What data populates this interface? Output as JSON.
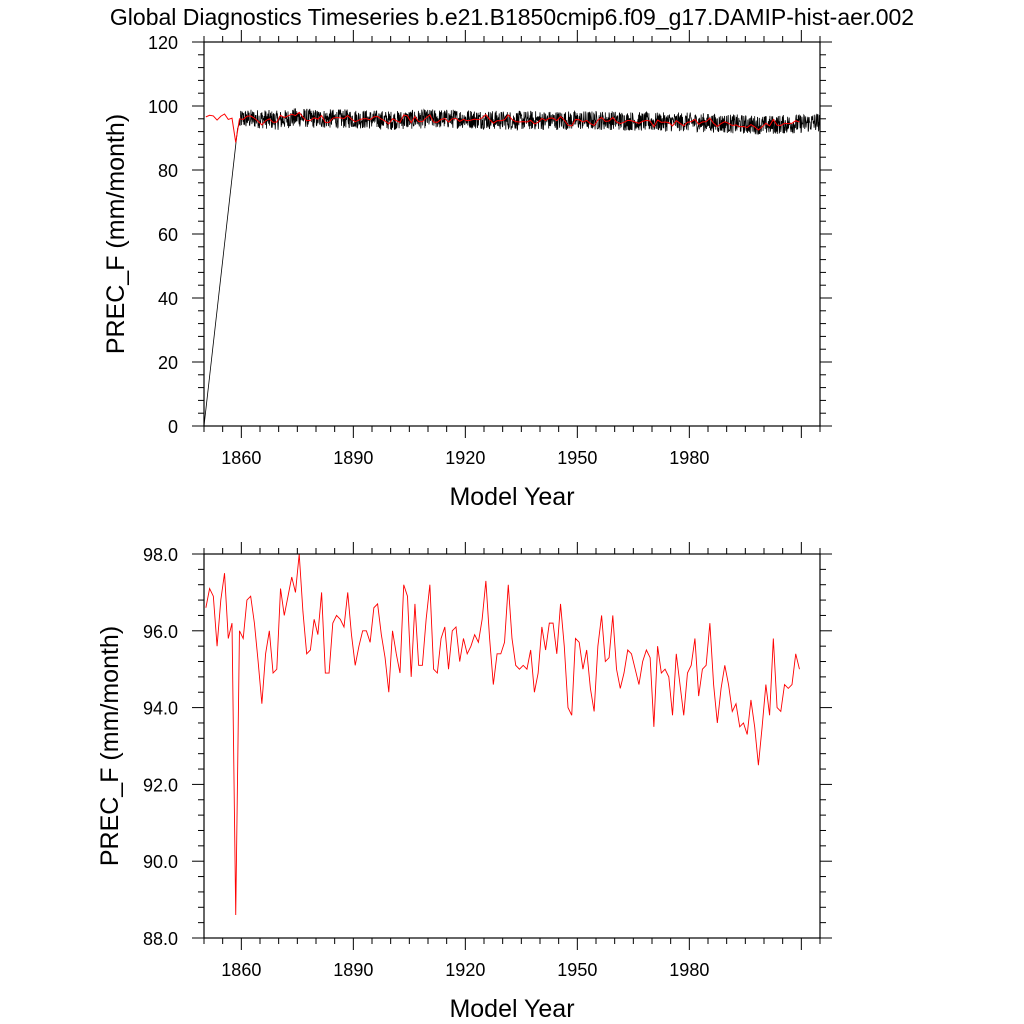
{
  "title": "Global Diagnostics Timeseries b.e21.B1850cmip6.f09_g17.DAMIP-hist-aer.002",
  "colors": {
    "monthly": "#000000",
    "annual": "#ff0000"
  },
  "chart_data": [
    {
      "type": "line",
      "xlabel": "Model Year",
      "ylabel": "PREC_F (mm/month)",
      "xlim": [
        1850,
        2015
      ],
      "ylim": [
        0,
        120
      ],
      "xticks": [
        1860,
        1890,
        1920,
        1950,
        1980
      ],
      "xtick_labels": [
        "1860",
        "1890",
        "1920",
        "1950",
        "1980"
      ],
      "yticks": [
        0,
        20,
        40,
        60,
        80,
        100,
        120
      ],
      "ytick_labels": [
        "0",
        "20",
        "40",
        "60",
        "80",
        "100",
        "120"
      ],
      "grid": false,
      "series": [
        {
          "style": "monthly",
          "color": "#000000",
          "description_note": "",
          "x_start": 1850,
          "x_end": 2015,
          "values_monthly_envelope": [
            [
              1850,
              0
            ],
            [
              1859,
              93
            ],
            [
              1860,
              96
            ],
            [
              1865,
              96
            ],
            [
              1870,
              95.5
            ],
            [
              1875,
              96.5
            ],
            [
              1880,
              96
            ],
            [
              1890,
              96
            ],
            [
              1900,
              95.5
            ],
            [
              1910,
              96
            ],
            [
              1920,
              96
            ],
            [
              1930,
              95.5
            ],
            [
              1940,
              95.5
            ],
            [
              1950,
              95.5
            ],
            [
              1960,
              95.5
            ],
            [
              1970,
              95
            ],
            [
              1980,
              95
            ],
            [
              1990,
              94.5
            ],
            [
              2000,
              94
            ],
            [
              2010,
              94.5
            ],
            [
              2015,
              95
            ]
          ],
          "monthly_spread": 3
        },
        {
          "style": "annual",
          "color": "#ff0000",
          "ref": "annual_mean"
        }
      ]
    },
    {
      "type": "line",
      "xlabel": "Model Year",
      "ylabel": "PREC_F (mm/month)",
      "xlim": [
        1850,
        2015
      ],
      "ylim": [
        88,
        98
      ],
      "xticks": [
        1860,
        1890,
        1920,
        1950,
        1980
      ],
      "xtick_labels": [
        "1860",
        "1890",
        "1920",
        "1950",
        "1980"
      ],
      "yticks": [
        88,
        90,
        92,
        94,
        96,
        98
      ],
      "ytick_labels": [
        "88.0",
        "90.0",
        "92.0",
        "94.0",
        "96.0",
        "98.0"
      ],
      "grid": false,
      "series": [
        {
          "style": "annual",
          "color": "#ff0000",
          "ref": "annual_mean"
        }
      ]
    }
  ],
  "annual_mean": {
    "x_start": 1850,
    "x_step": 1,
    "values": [
      96.6,
      97.1,
      96.9,
      95.6,
      96.8,
      97.5,
      95.8,
      96.2,
      88.6,
      96.0,
      95.8,
      96.8,
      96.9,
      96.2,
      95.2,
      94.1,
      95.4,
      96.0,
      94.9,
      95.0,
      97.1,
      96.4,
      96.9,
      97.4,
      97.0,
      98.0,
      96.5,
      95.4,
      95.5,
      96.3,
      95.9,
      97.0,
      94.9,
      94.9,
      96.2,
      96.4,
      96.3,
      96.1,
      97.0,
      95.9,
      95.1,
      95.6,
      96.0,
      96.0,
      95.7,
      96.6,
      96.7,
      95.9,
      95.3,
      94.4,
      96.0,
      95.4,
      94.9,
      97.2,
      96.9,
      94.8,
      96.7,
      95.1,
      95.1,
      96.3,
      97.2,
      95.0,
      94.9,
      95.8,
      96.1,
      95.0,
      96.0,
      96.1,
      95.2,
      95.8,
      95.4,
      95.6,
      95.9,
      95.7,
      96.3,
      97.3,
      95.8,
      94.6,
      95.4,
      95.4,
      95.7,
      97.2,
      95.8,
      95.1,
      95.0,
      95.1,
      95.0,
      95.5,
      94.4,
      94.9,
      96.1,
      95.5,
      96.2,
      96.2,
      95.4,
      96.7,
      95.6,
      94.0,
      93.8,
      95.8,
      95.7,
      95.0,
      95.5,
      94.5,
      93.9,
      95.6,
      96.4,
      95.2,
      95.3,
      96.4,
      95.0,
      94.5,
      94.9,
      95.5,
      95.4,
      95.0,
      94.6,
      95.2,
      95.5,
      95.3,
      93.5,
      95.6,
      94.9,
      95.0,
      94.8,
      93.8,
      95.4,
      94.6,
      93.8,
      94.9,
      95.1,
      95.8,
      94.3,
      95.0,
      95.1,
      96.2,
      94.6,
      93.6,
      94.5,
      95.1,
      94.6,
      93.9,
      94.1,
      93.5,
      93.6,
      93.3,
      94.2,
      93.5,
      92.5,
      93.5,
      94.6,
      93.8,
      95.8,
      94.0,
      93.9,
      94.6,
      94.5,
      94.6,
      95.4,
      95.0
    ]
  }
}
